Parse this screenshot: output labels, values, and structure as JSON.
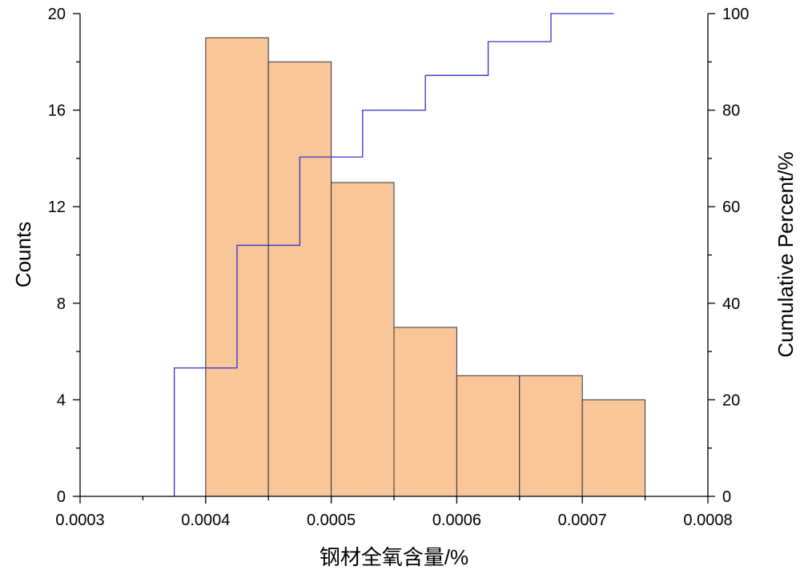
{
  "chart_data": {
    "type": "bar",
    "title": "",
    "xlabel": "钢材全氧含量/%",
    "ylabel": "Counts",
    "y2label": "Cumulative Percent/%",
    "xlim": [
      0.0003,
      0.0008
    ],
    "ylim": [
      0,
      20
    ],
    "y2lim": [
      0,
      100
    ],
    "x_ticks": [
      0.0003,
      0.0004,
      0.0005,
      0.0006,
      0.0007,
      0.0008
    ],
    "x_tick_labels": [
      "0.0003",
      "0.0004",
      "0.0005",
      "0.0006",
      "0.0007",
      "0.0008"
    ],
    "y_ticks": [
      0,
      4,
      8,
      12,
      16,
      20
    ],
    "y_tick_labels": [
      "0",
      "4",
      "8",
      "12",
      "16",
      "20"
    ],
    "y2_ticks": [
      0,
      20,
      40,
      60,
      80,
      100
    ],
    "y2_tick_labels": [
      "0",
      "20",
      "40",
      "60",
      "80",
      "100"
    ],
    "grid": false,
    "bins": [
      {
        "x0": 0.0004,
        "x1": 0.00045,
        "count": 19
      },
      {
        "x0": 0.00045,
        "x1": 0.0005,
        "count": 18
      },
      {
        "x0": 0.0005,
        "x1": 0.00055,
        "count": 13
      },
      {
        "x0": 0.00055,
        "x1": 0.0006,
        "count": 7
      },
      {
        "x0": 0.0006,
        "x1": 0.00065,
        "count": 5
      },
      {
        "x0": 0.00065,
        "x1": 0.0007,
        "count": 5
      },
      {
        "x0": 0.0007,
        "x1": 0.00075,
        "count": 4
      }
    ],
    "cumulative": {
      "x": [
        0.000375,
        0.000425,
        0.000475,
        0.000525,
        0.000575,
        0.000625,
        0.000675
      ],
      "percent": [
        26.6,
        52.0,
        70.3,
        80.0,
        87.2,
        94.2,
        100
      ]
    },
    "colors": {
      "bar_fill": "#F9C699",
      "bar_stroke": "#333333",
      "cumulative_line": "#3333CC",
      "axis": "#000000"
    }
  }
}
